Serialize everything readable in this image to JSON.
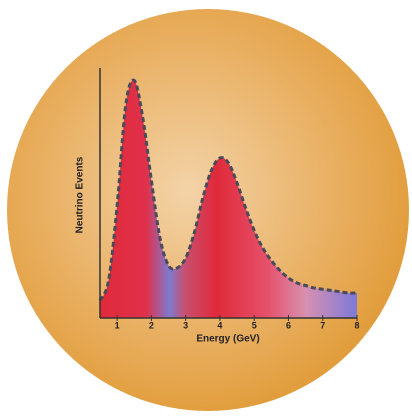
{
  "chart_data": {
    "type": "area",
    "x_label": "Energy (GeV)",
    "y_label": "Neutrino Events",
    "x": [
      0.5,
      0.75,
      1.0,
      1.25,
      1.5,
      1.75,
      2.0,
      2.25,
      2.5,
      2.75,
      3.0,
      3.25,
      3.5,
      3.75,
      4.0,
      4.25,
      4.5,
      4.75,
      5.0,
      5.25,
      5.5,
      5.75,
      6.0,
      6.25,
      6.5,
      6.75,
      7.0,
      7.25,
      7.5,
      7.75,
      8.0
    ],
    "values": [
      7,
      15,
      45,
      85,
      95,
      80,
      55,
      32,
      21,
      20,
      24,
      34,
      48,
      59,
      64,
      62,
      54,
      44,
      35,
      28,
      23,
      19,
      16,
      14,
      13,
      12,
      11.5,
      11,
      10.5,
      10,
      10
    ],
    "color": "#e0303c",
    "line_color": "#4a4a5a",
    "xlim": [
      0.5,
      8
    ],
    "xticks": [
      1,
      2,
      3,
      4,
      5,
      6,
      7,
      8
    ],
    "ylim": [
      0,
      100
    ]
  }
}
